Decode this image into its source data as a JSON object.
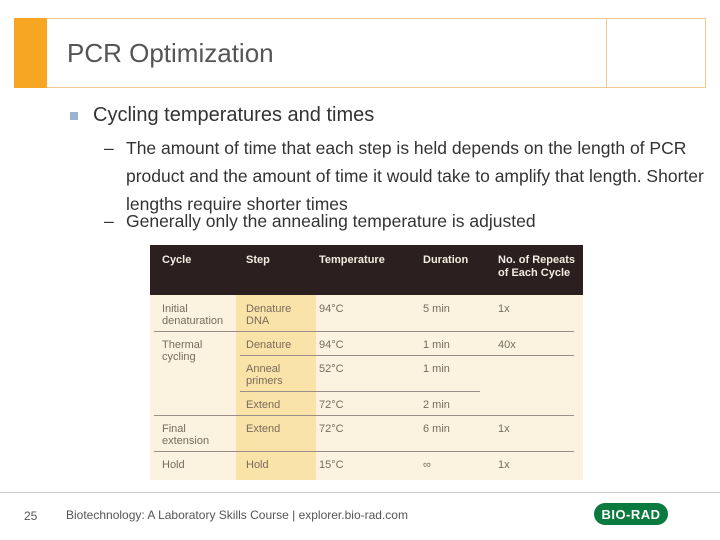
{
  "slide": {
    "title": "PCR Optimization",
    "bullet": "Cycling temperatures and times",
    "sub_bullets": [
      "The amount of time that each step is held depends on the length of PCR product and the amount of time it would take to amplify that length. Shorter lengths require shorter times",
      "Generally only the annealing temperature is adjusted"
    ],
    "dash": "–"
  },
  "table": {
    "headers": [
      "Cycle",
      "Step",
      "Temperature",
      "Duration",
      "No. of Repeats of Each Cycle"
    ],
    "rows": [
      {
        "cycle": "Initial denaturation",
        "step": "Denature DNA",
        "temp": "94°C",
        "duration": "5 min",
        "repeats": "1x"
      },
      {
        "cycle": "Thermal cycling",
        "step": "Denature",
        "temp": "94°C",
        "duration": "1 min",
        "repeats": "40x"
      },
      {
        "cycle": "",
        "step": "Anneal primers",
        "temp": "52°C",
        "duration": "1 min",
        "repeats": ""
      },
      {
        "cycle": "",
        "step": "Extend",
        "temp": "72°C",
        "duration": "2 min",
        "repeats": ""
      },
      {
        "cycle": "Final extension",
        "step": "Extend",
        "temp": "72°C",
        "duration": "6 min",
        "repeats": "1x"
      },
      {
        "cycle": "Hold",
        "step": "Hold",
        "temp": "15°C",
        "duration": "∞",
        "repeats": "1x"
      }
    ]
  },
  "footer": {
    "page_number": "25",
    "text": "Biotechnology: A Laboratory Skills Course  |   explorer.bio-rad.com",
    "logo": "BIO-RAD"
  }
}
